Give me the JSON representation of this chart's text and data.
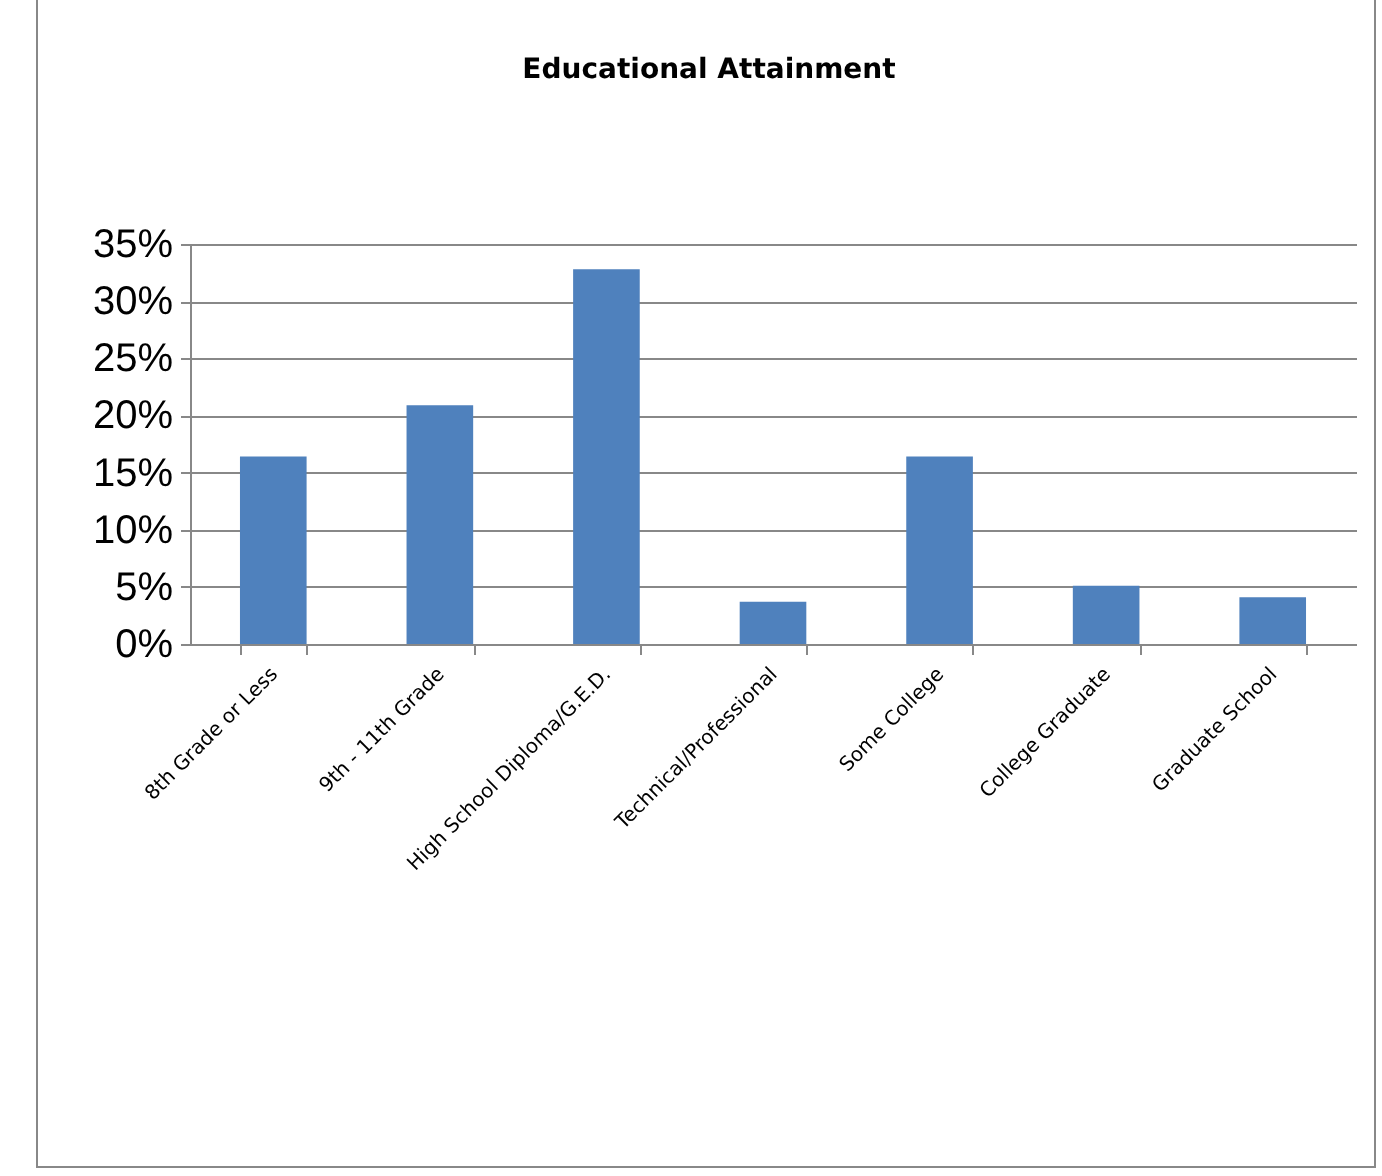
{
  "chart_data": {
    "type": "bar",
    "title": "Educational Attainment",
    "categories": [
      "8th Grade or Less",
      "9th - 11th Grade",
      "High School Diploma/G.E.D.",
      "Technical/Professional",
      "Some College",
      "College Graduate",
      "Graduate School"
    ],
    "values": [
      16.4,
      20.9,
      32.8,
      3.7,
      16.4,
      5.1,
      4.1
    ],
    "color": "#4f81bd",
    "ylim": [
      0,
      35
    ],
    "yticks": [
      {
        "value": 0,
        "label": "0%"
      },
      {
        "value": 5,
        "label": "5%"
      },
      {
        "value": 10,
        "label": "10%"
      },
      {
        "value": 15,
        "label": "15%"
      },
      {
        "value": 20,
        "label": "20%"
      },
      {
        "value": 25,
        "label": "25%"
      },
      {
        "value": 30,
        "label": "30%"
      },
      {
        "value": 35,
        "label": "35%"
      }
    ],
    "grid": "y"
  }
}
